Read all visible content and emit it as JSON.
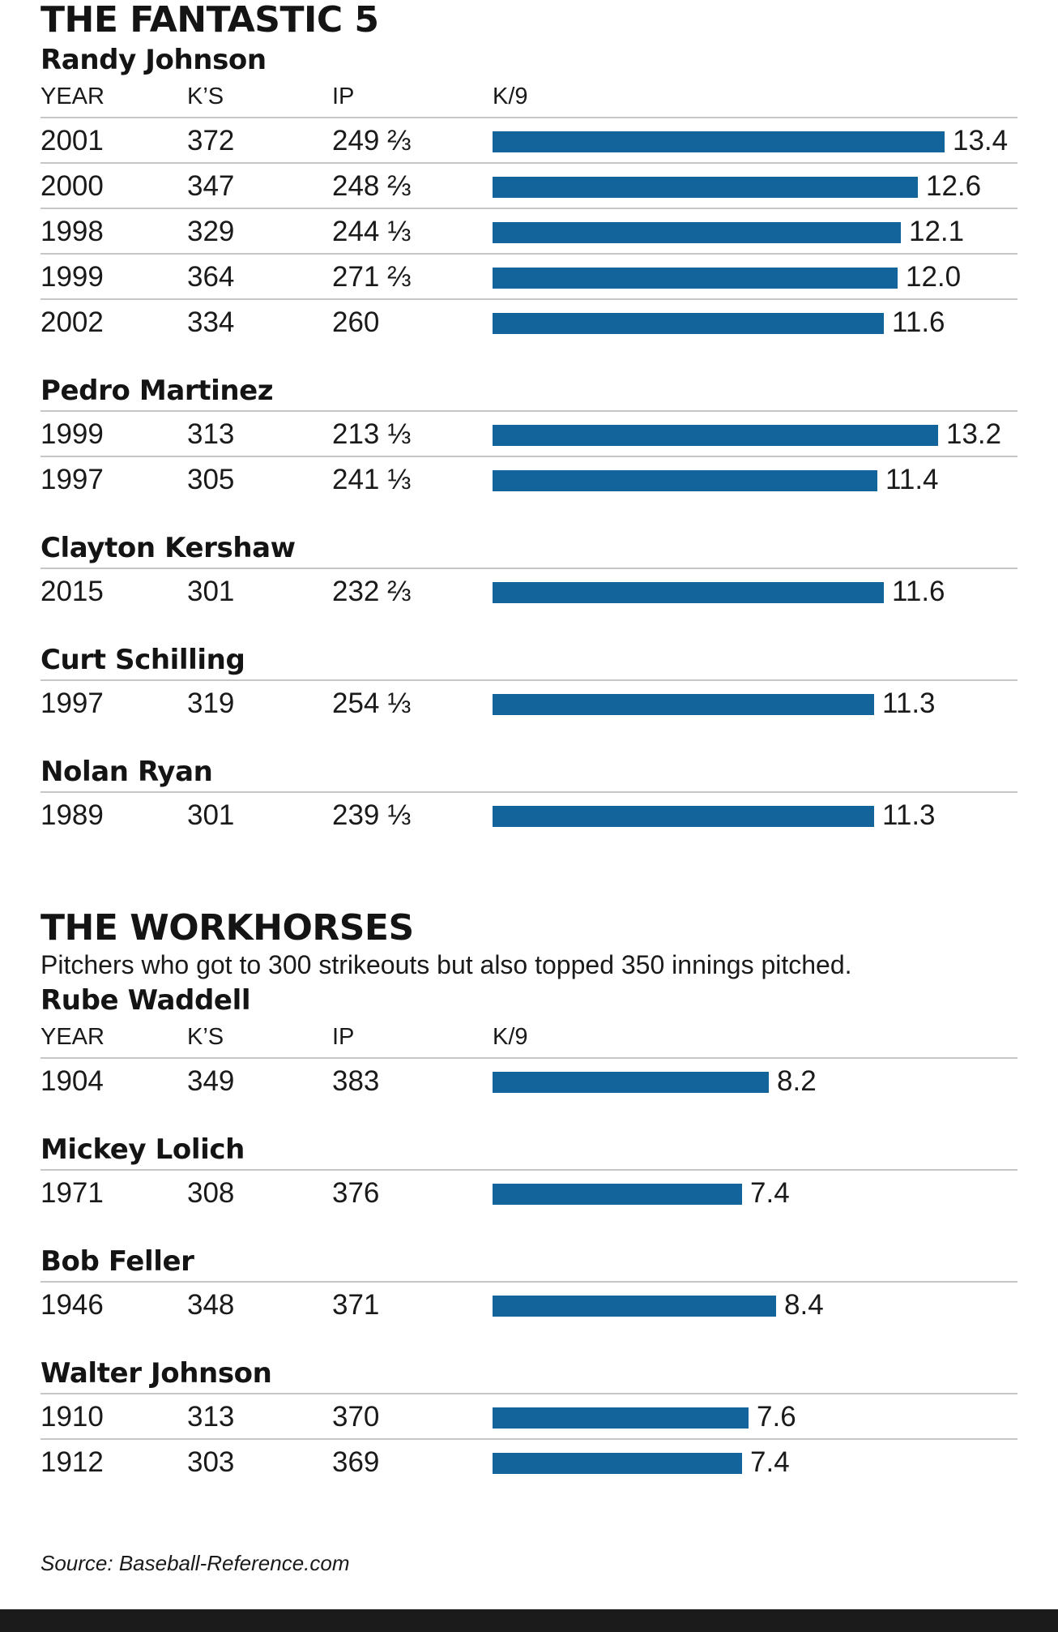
{
  "colors": {
    "bar": "#13649b",
    "rule": "#c6c6c6",
    "footer": "#1b1b1b"
  },
  "columns": {
    "year": "YEAR",
    "ks": "K’S",
    "ip": "IP",
    "k9": "K/9"
  },
  "source": "Source: Baseball-Reference.com",
  "chart_data": [
    {
      "type": "bar",
      "orientation": "horizontal",
      "title": "THE FANTASTIC 5",
      "subtitle": "",
      "value_label": "K/9",
      "xlim": [
        0,
        13.4
      ],
      "groups": [
        {
          "pitcher": "Randy Johnson",
          "rows": [
            {
              "year": "2001",
              "ks": "372",
              "ip": "249 ⅔",
              "k9": 13.4,
              "k9_label": "13.4"
            },
            {
              "year": "2000",
              "ks": "347",
              "ip": "248 ⅔",
              "k9": 12.6,
              "k9_label": "12.6"
            },
            {
              "year": "1998",
              "ks": "329",
              "ip": "244 ⅓",
              "k9": 12.1,
              "k9_label": "12.1"
            },
            {
              "year": "1999",
              "ks": "364",
              "ip": "271 ⅔",
              "k9": 12.0,
              "k9_label": "12.0"
            },
            {
              "year": "2002",
              "ks": "334",
              "ip": "260",
              "k9": 11.6,
              "k9_label": "11.6"
            }
          ]
        },
        {
          "pitcher": "Pedro Martinez",
          "rows": [
            {
              "year": "1999",
              "ks": "313",
              "ip": "213 ⅓",
              "k9": 13.2,
              "k9_label": "13.2"
            },
            {
              "year": "1997",
              "ks": "305",
              "ip": "241 ⅓",
              "k9": 11.4,
              "k9_label": "11.4"
            }
          ]
        },
        {
          "pitcher": "Clayton Kershaw",
          "rows": [
            {
              "year": "2015",
              "ks": "301",
              "ip": "232 ⅔",
              "k9": 11.6,
              "k9_label": "11.6"
            }
          ]
        },
        {
          "pitcher": "Curt Schilling",
          "rows": [
            {
              "year": "1997",
              "ks": "319",
              "ip": "254 ⅓",
              "k9": 11.3,
              "k9_label": "11.3"
            }
          ]
        },
        {
          "pitcher": "Nolan Ryan",
          "rows": [
            {
              "year": "1989",
              "ks": "301",
              "ip": "239 ⅓",
              "k9": 11.3,
              "k9_label": "11.3"
            }
          ]
        }
      ]
    },
    {
      "type": "bar",
      "orientation": "horizontal",
      "title": "THE WORKHORSES",
      "subtitle": "Pitchers who got to 300 strikeouts but also topped 350 innings pitched.",
      "value_label": "K/9",
      "xlim": [
        0,
        13.4
      ],
      "groups": [
        {
          "pitcher": "Rube Waddell",
          "rows": [
            {
              "year": "1904",
              "ks": "349",
              "ip": "383",
              "k9": 8.2,
              "k9_label": "8.2"
            }
          ]
        },
        {
          "pitcher": "Mickey Lolich",
          "rows": [
            {
              "year": "1971",
              "ks": "308",
              "ip": "376",
              "k9": 7.4,
              "k9_label": "7.4"
            }
          ]
        },
        {
          "pitcher": "Bob Feller",
          "rows": [
            {
              "year": "1946",
              "ks": "348",
              "ip": "371",
              "k9": 8.4,
              "k9_label": "8.4"
            }
          ]
        },
        {
          "pitcher": "Walter Johnson",
          "rows": [
            {
              "year": "1910",
              "ks": "313",
              "ip": "370",
              "k9": 7.6,
              "k9_label": "7.6"
            },
            {
              "year": "1912",
              "ks": "303",
              "ip": "369",
              "k9": 7.4,
              "k9_label": "7.4"
            }
          ]
        }
      ]
    }
  ]
}
